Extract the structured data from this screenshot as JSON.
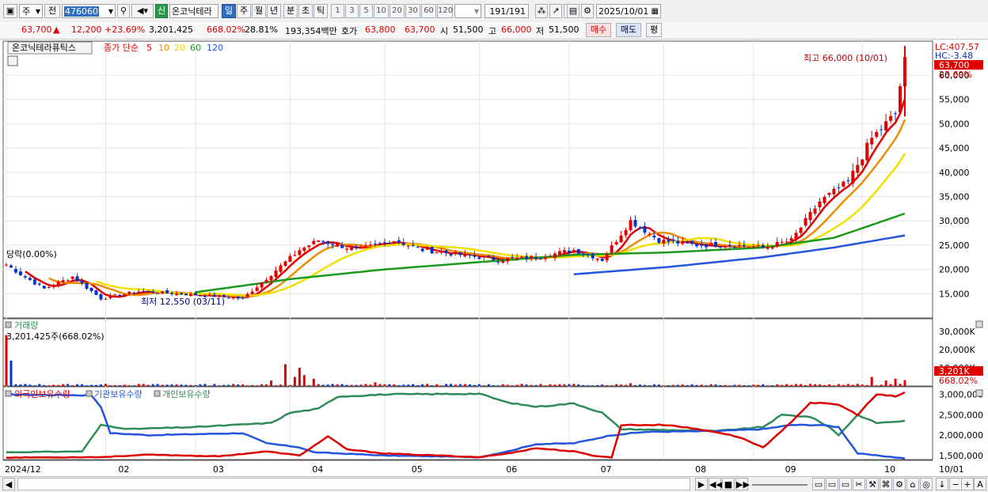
{
  "toolbar": {
    "market": "주",
    "prev": "전",
    "code": "476060",
    "new_badge": "신",
    "stock_name": "온코닉테라",
    "periods": [
      "일",
      "주",
      "월",
      "년",
      "분",
      "초",
      "틱"
    ],
    "selected_period": "일",
    "intervals": [
      "1",
      "3",
      "5",
      "10",
      "20",
      "30",
      "60",
      "120"
    ],
    "count": "191",
    "count_total": "/191",
    "date": "2025/10/01"
  },
  "quote": {
    "price": "63,700",
    "arrow": "▲",
    "change": "12,200",
    "change_pct": "+23.69%",
    "volume": "3,201,425",
    "vol_ratio": "668.02%",
    "turnover": "28.81%",
    "amount": "193,354백만",
    "ask_label": "호가",
    "ask": "63,800",
    "bid": "63,700",
    "open_label": "시",
    "open": "51,500",
    "high_label": "고",
    "high": "66,000",
    "low_label": "저",
    "low": "51,500",
    "buy_label": "매수",
    "sell_label": "매도",
    "flat_label": "평"
  },
  "legend": {
    "name": "온코닉테라퓨틱스",
    "price_label": "종가 단순",
    "ma5": "5",
    "ma10": "10",
    "ma20": "20",
    "ma60": "60",
    "ma120": "120"
  },
  "right_labels": {
    "lc": "LC:407.57",
    "hc": "HC:-3.48",
    "price_box": "63,700",
    "pct": "23.69%",
    "vol_box": "3,201K",
    "vol_pct": "668.02%"
  },
  "annotations": {
    "high": "최고 66,000 (10/01)",
    "low": "최저 12,550 (03/11)",
    "first": "당락(0.00%)"
  },
  "volume_panel": {
    "title": "거래량",
    "value": "3,201,425주(668.02%)"
  },
  "holdings_panel": {
    "foreign": "외국인보유수량",
    "institution": "기관보유수량",
    "individual": "개인보유수량"
  },
  "colors": {
    "up": "#e00000",
    "down": "#0033cc",
    "ma5": "#e00000",
    "ma10": "#f08c00",
    "ma20": "#f0e000",
    "ma60": "#1a9a1a",
    "ma120": "#2255dd",
    "foreign": "#dd0000",
    "institution": "#2255dd",
    "individual": "#2e8b57"
  },
  "chart_data": {
    "type": "candlestick",
    "price_ticks": [
      15000,
      20000,
      25000,
      30000,
      35000,
      40000,
      45000,
      50000,
      55000,
      60000
    ],
    "price_tick_labels": [
      "15,000",
      "20,000",
      "25,000",
      "30,000",
      "35,000",
      "40,000",
      "45,000",
      "50,000",
      "55,000",
      "60,000"
    ],
    "ylim": [
      10000,
      67000
    ],
    "x_months": [
      "2024/12",
      "02",
      "03",
      "04",
      "05",
      "06",
      "07",
      "08",
      "09",
      "10",
      "10/01"
    ],
    "close_anchors": [
      [
        0,
        21000
      ],
      [
        3,
        19000
      ],
      [
        8,
        16000
      ],
      [
        14,
        18500
      ],
      [
        20,
        14000
      ],
      [
        28,
        15500
      ],
      [
        36,
        15000
      ],
      [
        44,
        14500
      ],
      [
        50,
        14000
      ],
      [
        56,
        19000
      ],
      [
        62,
        24000
      ],
      [
        66,
        26000
      ],
      [
        74,
        24000
      ],
      [
        82,
        26000
      ],
      [
        88,
        24000
      ],
      [
        96,
        23000
      ],
      [
        104,
        22000
      ],
      [
        112,
        22500
      ],
      [
        120,
        24000
      ],
      [
        126,
        22000
      ],
      [
        132,
        30000
      ],
      [
        138,
        26000
      ],
      [
        146,
        25000
      ],
      [
        154,
        25000
      ],
      [
        160,
        24500
      ],
      [
        166,
        26000
      ],
      [
        172,
        34000
      ],
      [
        178,
        38000
      ],
      [
        183,
        47000
      ],
      [
        188,
        52000
      ],
      [
        190,
        63700
      ]
    ],
    "ma60_anchors": [
      [
        40,
        15300
      ],
      [
        60,
        18000
      ],
      [
        80,
        20000
      ],
      [
        100,
        21500
      ],
      [
        120,
        23000
      ],
      [
        140,
        23500
      ],
      [
        160,
        24500
      ],
      [
        175,
        26500
      ],
      [
        190,
        31500
      ]
    ],
    "ma120_anchors": [
      [
        120,
        19000
      ],
      [
        140,
        20500
      ],
      [
        160,
        22500
      ],
      [
        175,
        24500
      ],
      [
        190,
        27000
      ]
    ],
    "volume_ticks": [
      30000,
      20000,
      10000
    ],
    "volume_tick_labels": [
      "30,000K",
      "20,000K",
      "10,000K"
    ],
    "volume_spikes": [
      [
        0,
        28000
      ],
      [
        1,
        14000
      ],
      [
        56,
        3000
      ],
      [
        59,
        12000
      ],
      [
        61,
        5000
      ],
      [
        62,
        10000
      ],
      [
        63,
        6000
      ],
      [
        65,
        4000
      ],
      [
        78,
        2000
      ],
      [
        132,
        1500
      ],
      [
        183,
        5000
      ],
      [
        186,
        3000
      ],
      [
        188,
        4000
      ],
      [
        190,
        3201
      ]
    ],
    "holding_ticks": [
      3000000,
      2500000,
      2000000,
      1500000
    ],
    "holding_tick_labels": [
      "3,000,000",
      "2,500,000",
      "2,000,000",
      "1,500,000"
    ],
    "holding_range": [
      1400000,
      3150000
    ],
    "foreign_anchors": [
      [
        0,
        1450000
      ],
      [
        20,
        1460000
      ],
      [
        30,
        1520000
      ],
      [
        45,
        1480000
      ],
      [
        55,
        1600000
      ],
      [
        62,
        1500000
      ],
      [
        68,
        1970000
      ],
      [
        72,
        1650000
      ],
      [
        80,
        1550000
      ],
      [
        100,
        1460000
      ],
      [
        106,
        1550000
      ],
      [
        112,
        1680000
      ],
      [
        120,
        1600000
      ],
      [
        124,
        1500000
      ],
      [
        128,
        1450000
      ],
      [
        130,
        2250000
      ],
      [
        140,
        2250000
      ],
      [
        150,
        2080000
      ],
      [
        155,
        1950000
      ],
      [
        160,
        1700000
      ],
      [
        164,
        2100000
      ],
      [
        170,
        2800000
      ],
      [
        176,
        2750000
      ],
      [
        180,
        2500000
      ],
      [
        184,
        3000000
      ],
      [
        188,
        2950000
      ],
      [
        190,
        3050000
      ]
    ],
    "institution_anchors": [
      [
        0,
        3000000
      ],
      [
        18,
        2980000
      ],
      [
        20,
        2700000
      ],
      [
        22,
        2050000
      ],
      [
        30,
        2000000
      ],
      [
        50,
        2050000
      ],
      [
        55,
        1800000
      ],
      [
        62,
        1700000
      ],
      [
        65,
        1580000
      ],
      [
        80,
        1500000
      ],
      [
        100,
        1460000
      ],
      [
        106,
        1600000
      ],
      [
        112,
        1780000
      ],
      [
        120,
        1800000
      ],
      [
        128,
        2000000
      ],
      [
        135,
        2080000
      ],
      [
        150,
        2100000
      ],
      [
        160,
        2150000
      ],
      [
        166,
        2250000
      ],
      [
        172,
        2250000
      ],
      [
        176,
        2200000
      ],
      [
        180,
        1550000
      ],
      [
        190,
        1430000
      ]
    ],
    "individual_anchors": [
      [
        0,
        1580000
      ],
      [
        16,
        1600000
      ],
      [
        20,
        2250000
      ],
      [
        26,
        2150000
      ],
      [
        40,
        2200000
      ],
      [
        56,
        2300000
      ],
      [
        60,
        2550000
      ],
      [
        66,
        2650000
      ],
      [
        70,
        2950000
      ],
      [
        80,
        3000000
      ],
      [
        100,
        3020000
      ],
      [
        106,
        2800000
      ],
      [
        112,
        2700000
      ],
      [
        120,
        2780000
      ],
      [
        126,
        2550000
      ],
      [
        130,
        2150000
      ],
      [
        150,
        2100000
      ],
      [
        160,
        2200000
      ],
      [
        164,
        2500000
      ],
      [
        170,
        2450000
      ],
      [
        174,
        2200000
      ],
      [
        176,
        2000000
      ],
      [
        180,
        2500000
      ],
      [
        184,
        2300000
      ],
      [
        190,
        2350000
      ]
    ]
  }
}
